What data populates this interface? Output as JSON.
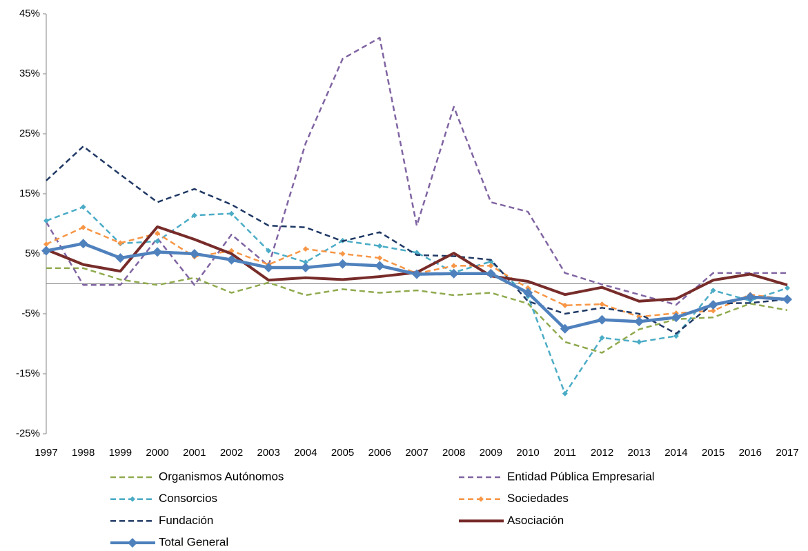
{
  "chart_data": {
    "type": "line",
    "categories": [
      "1997",
      "1998",
      "1999",
      "2000",
      "2001",
      "2002",
      "2003",
      "2004",
      "2005",
      "2006",
      "2007",
      "2008",
      "2009",
      "2010",
      "2011",
      "2012",
      "2013",
      "2014",
      "2015",
      "2016",
      "2017"
    ],
    "ylim": [
      -25,
      45
    ],
    "yticks": [
      {
        "value": -25,
        "label": "-25%"
      },
      {
        "value": -15,
        "label": "-15%"
      },
      {
        "value": -5,
        "label": "-5%"
      },
      {
        "value": 5,
        "label": "5%"
      },
      {
        "value": 15,
        "label": "15%"
      },
      {
        "value": 25,
        "label": "25%"
      },
      {
        "value": 35,
        "label": "35%"
      },
      {
        "value": 45,
        "label": "45%"
      }
    ],
    "grid": false,
    "series": [
      {
        "name": "Organismos Autónomos",
        "color": "#8faa4e",
        "dashed": true,
        "marker": "none",
        "values": [
          2.6,
          2.6,
          0.7,
          -0.2,
          1.0,
          -1.5,
          0.2,
          -1.9,
          -0.9,
          -1.5,
          -1.1,
          -1.9,
          -1.5,
          -3.3,
          -9.7,
          -11.5,
          -7.6,
          -5.9,
          -5.6,
          -3.3,
          -4.4
        ]
      },
      {
        "name": "Entidad Pública Empresarial",
        "color": "#8064a2",
        "dashed": true,
        "marker": "none",
        "values": [
          10.3,
          -0.2,
          -0.2,
          7.6,
          -0.2,
          8.2,
          3.0,
          23.4,
          37.5,
          41.0,
          9.7,
          29.5,
          13.6,
          12.0,
          1.8,
          -0.1,
          -1.8,
          -3.5,
          1.8,
          1.8,
          1.8
        ]
      },
      {
        "name": "Consorcios",
        "color": "#4bacc6",
        "dashed": true,
        "marker": "small-diamond",
        "values": [
          10.5,
          12.8,
          6.7,
          7.1,
          11.4,
          11.7,
          5.5,
          3.6,
          7.2,
          6.3,
          5.2,
          1.9,
          3.7,
          -2.1,
          -18.3,
          -9.0,
          -9.7,
          -8.7,
          -1.1,
          -2.8,
          -0.7
        ]
      },
      {
        "name": "Sociedades",
        "color": "#f79646",
        "dashed": true,
        "marker": "small-diamond",
        "values": [
          6.6,
          9.4,
          6.8,
          8.4,
          4.5,
          5.5,
          3.2,
          5.8,
          5.0,
          4.3,
          1.7,
          3.0,
          3.0,
          -0.7,
          -3.6,
          -3.4,
          -5.5,
          -4.9,
          -4.5,
          -1.8,
          -2.6
        ]
      },
      {
        "name": "Fundación",
        "color": "#1f3864",
        "dashed": true,
        "marker": "none",
        "values": [
          17.2,
          22.9,
          18.2,
          13.6,
          15.8,
          13.2,
          9.7,
          9.4,
          7.1,
          8.6,
          4.8,
          4.6,
          4.0,
          -2.9,
          -5.0,
          -4.0,
          -5.0,
          -8.3,
          -3.3,
          -3.2,
          -2.6
        ]
      },
      {
        "name": "Asociación",
        "color": "#772c2a",
        "dashed": false,
        "marker": "none",
        "values": [
          5.7,
          3.2,
          2.1,
          9.5,
          7.4,
          5.0,
          0.6,
          1.0,
          0.7,
          1.2,
          1.9,
          5.1,
          1.3,
          0.4,
          -1.8,
          -0.6,
          -2.9,
          -2.5,
          0.6,
          1.6,
          -0.2
        ]
      },
      {
        "name": "Total General",
        "color": "#4f81bd",
        "dashed": false,
        "marker": "diamond",
        "values": [
          5.5,
          6.7,
          4.3,
          5.3,
          5.0,
          4.0,
          2.7,
          2.7,
          3.3,
          3.0,
          1.6,
          1.7,
          1.7,
          -1.5,
          -7.5,
          -6.0,
          -6.3,
          -5.6,
          -3.5,
          -2.2,
          -2.6
        ]
      }
    ]
  }
}
